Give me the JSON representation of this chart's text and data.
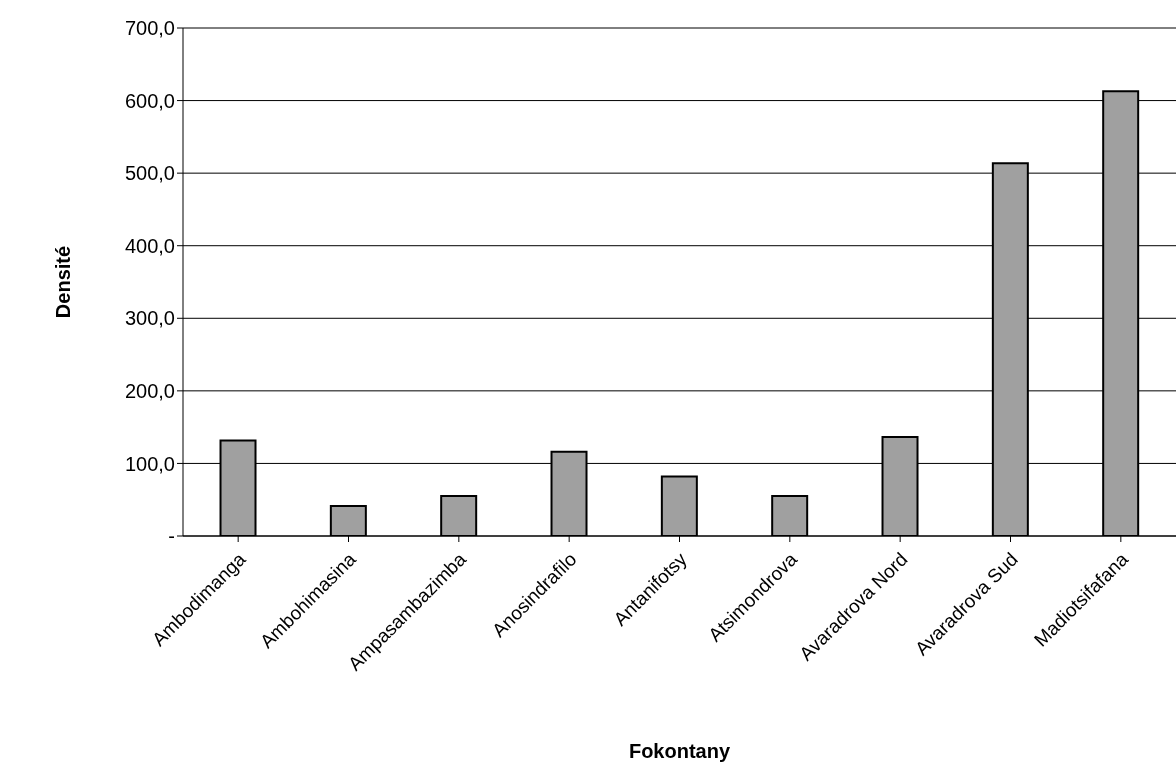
{
  "chart_data": {
    "type": "bar",
    "xlabel": "Fokontany",
    "ylabel": "Densité",
    "categories": [
      "Ambodimanga",
      "Ambohimasina",
      "Ampasambazimba",
      "Anosindrafilo",
      "Antanifotsy",
      "Atsimondrova",
      "Avaradrova Nord",
      "Avaradrova Sud",
      "Madiotsifafana"
    ],
    "values": [
      131.5,
      41.5,
      55,
      116,
      82,
      55,
      136.5,
      513.5,
      613
    ],
    "color": "#a0a0a0",
    "ylim": [
      0,
      700
    ],
    "yticks": [
      {
        "value": 0,
        "label": "-"
      },
      {
        "value": 100,
        "label": "100,0"
      },
      {
        "value": 200,
        "label": "200,0"
      },
      {
        "value": 300,
        "label": "300,0"
      },
      {
        "value": 400,
        "label": "400,0"
      },
      {
        "value": 500,
        "label": "500,0"
      },
      {
        "value": 600,
        "label": "600,0"
      },
      {
        "value": 700,
        "label": "700,0"
      }
    ],
    "grid": "y",
    "legend": false
  }
}
